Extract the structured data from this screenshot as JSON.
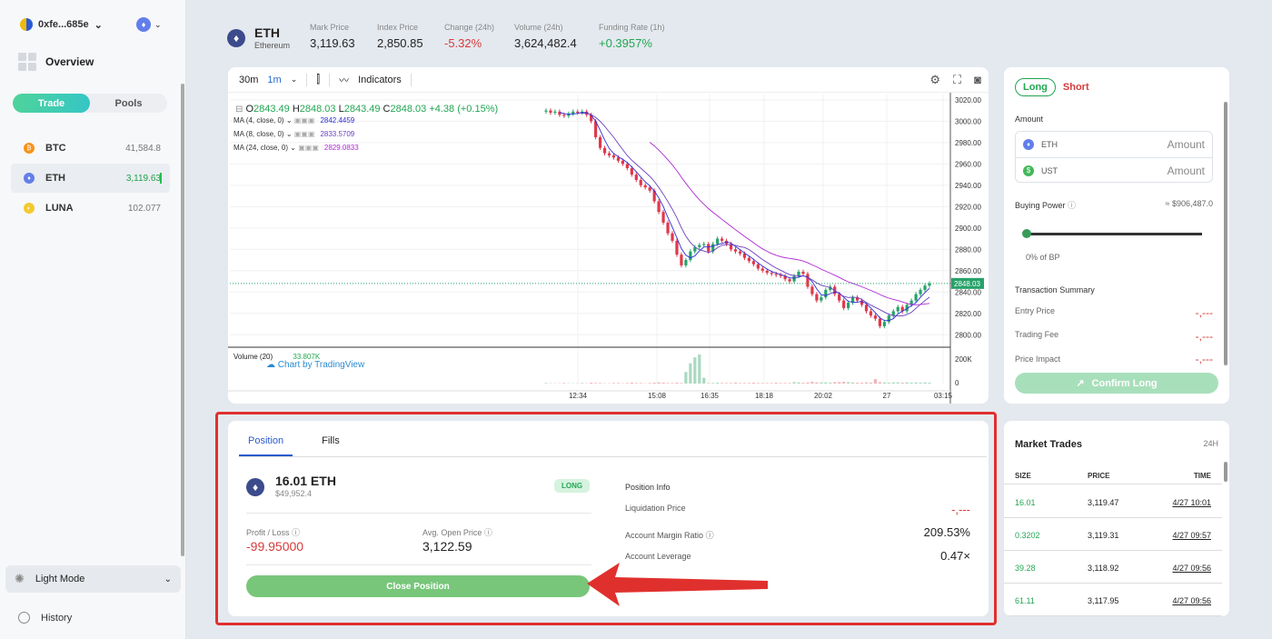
{
  "sidebar": {
    "wallet": "0xfe...685e",
    "overview": "Overview",
    "switch": {
      "trade": "Trade",
      "pools": "Pools"
    },
    "assets": [
      {
        "name": "BTC",
        "price": "41,584.8",
        "color": "#f7931a",
        "glyph": "₿"
      },
      {
        "name": "ETH",
        "price": "3,119.63",
        "color": "#627eea",
        "glyph": "♦"
      },
      {
        "name": "LUNA",
        "price": "102.077",
        "color": "#f4c92e",
        "glyph": "◐"
      }
    ],
    "light_mode": "Light Mode",
    "history": "History"
  },
  "header": {
    "symbol": "ETH",
    "name": "Ethereum",
    "stats": [
      {
        "label": "Mark Price",
        "value": "3,119.63",
        "tone": ""
      },
      {
        "label": "Index Price",
        "value": "2,850.85",
        "tone": ""
      },
      {
        "label": "Change (24h)",
        "value": "-5.32%",
        "tone": "red"
      },
      {
        "label": "Volume (24h)",
        "value": "3,624,482.4",
        "tone": ""
      },
      {
        "label": "Funding Rate (1h)",
        "value": "+0.3957%",
        "tone": "green"
      }
    ]
  },
  "chart_toolbar": {
    "interval": "30m",
    "interval2": "1m",
    "indicators": "Indicators"
  },
  "chart_data": {
    "type": "candlestick",
    "ohlc": {
      "o": "2843.49",
      "h": "2848.03",
      "l": "2843.49",
      "c": "2848.03",
      "change": "+4.38 (+0.15%)"
    },
    "ma": [
      {
        "label": "MA (4, close, 0)",
        "value": "2842.4459",
        "color": "#2d2dd6"
      },
      {
        "label": "MA (8, close, 0)",
        "value": "2833.5709",
        "color": "#6a3fbf"
      },
      {
        "label": "MA (24, close, 0)",
        "value": "2829.0833",
        "color": "#b028d6"
      }
    ],
    "y_ticks": [
      "3020.00",
      "3000.00",
      "2980.00",
      "2960.00",
      "2940.00",
      "2920.00",
      "2900.00",
      "2880.00",
      "2860.00",
      "2840.00",
      "2820.00",
      "2800.00"
    ],
    "ylim": [
      2790,
      3025
    ],
    "last_price": "2848.03",
    "x_ticks": [
      "12:34",
      "15:08",
      "16:35",
      "18:18",
      "20:02",
      "27",
      "03:15"
    ],
    "volume_label": "Volume (20)",
    "volume_value": "33.807K",
    "volume_ticks": [
      "200K",
      "0"
    ],
    "closes": [
      3010,
      3008,
      3009,
      3006,
      3005,
      3007,
      3009,
      3008,
      3009,
      3006,
      3000,
      2985,
      2975,
      2970,
      2968,
      2966,
      2963,
      2960,
      2956,
      2950,
      2945,
      2940,
      2938,
      2935,
      2925,
      2915,
      2905,
      2895,
      2888,
      2875,
      2865,
      2870,
      2878,
      2882,
      2884,
      2885,
      2878,
      2885,
      2890,
      2888,
      2885,
      2880,
      2878,
      2876,
      2872,
      2869,
      2866,
      2862,
      2860,
      2858,
      2857,
      2856,
      2855,
      2852,
      2850,
      2855,
      2859,
      2857,
      2845,
      2838,
      2832,
      2835,
      2842,
      2845,
      2838,
      2832,
      2825,
      2830,
      2835,
      2832,
      2828,
      2822,
      2818,
      2815,
      2808,
      2812,
      2818,
      2822,
      2826,
      2822,
      2828,
      2832,
      2838,
      2842,
      2846,
      2848
    ],
    "volumes": [
      2,
      1,
      1,
      1,
      2,
      1,
      1,
      1,
      2,
      1,
      3,
      2,
      2,
      1,
      1,
      2,
      2,
      1,
      2,
      3,
      2,
      2,
      1,
      2,
      3,
      4,
      3,
      2,
      2,
      3,
      2,
      40,
      70,
      90,
      100,
      20,
      2,
      2,
      3,
      2,
      2,
      2,
      3,
      2,
      2,
      2,
      3,
      2,
      2,
      2,
      2,
      3,
      2,
      2,
      2,
      5,
      4,
      3,
      4,
      6,
      4,
      4,
      4,
      3,
      5,
      5,
      6,
      5,
      4,
      3,
      3,
      4,
      3,
      15,
      5,
      4,
      3,
      4,
      4,
      3,
      4,
      3,
      4,
      3,
      4,
      3
    ],
    "tradingview": "Chart by TradingView"
  },
  "order": {
    "long": "Long",
    "short": "Short",
    "amount_label": "Amount",
    "eth": "ETH",
    "ust": "UST",
    "amount_placeholder": "Amount",
    "buying_power_label": "Buying Power",
    "buying_power_value": "≈ $906,487.0",
    "bp_pct": "0% of BP",
    "bp_level": 0,
    "tx_summary": "Transaction Summary",
    "entry_price": "Entry Price",
    "trading_fee": "Trading Fee",
    "price_impact": "Price Impact",
    "dash": "-,---",
    "confirm": "Confirm Long"
  },
  "position": {
    "tab_position": "Position",
    "tab_fills": "Fills",
    "size": "16.01 ETH",
    "usd": "$49,952.4",
    "badge": "LONG",
    "pl_label": "Profit / Loss",
    "pl_value": "-99.95000",
    "avg_label": "Avg. Open Price",
    "avg_value": "3,122.59",
    "close_btn": "Close Position",
    "info_title": "Position Info",
    "liq_label": "Liquidation Price",
    "liq_value": "-,---",
    "margin_label": "Account Margin Ratio",
    "margin_value": "209.53%",
    "lev_label": "Account Leverage",
    "lev_value": "0.47×"
  },
  "trades": {
    "title": "Market Trades",
    "period": "24H",
    "cols": [
      "SIZE",
      "PRICE",
      "TIME"
    ],
    "rows": [
      {
        "size": "16.01",
        "price": "3,119.47",
        "time": "4/27 10:01"
      },
      {
        "size": "0.3202",
        "price": "3,119.31",
        "time": "4/27 09:57"
      },
      {
        "size": "39.28",
        "price": "3,118.92",
        "time": "4/27 09:56"
      },
      {
        "size": "61.11",
        "price": "3,117.95",
        "time": "4/27 09:56"
      }
    ]
  }
}
